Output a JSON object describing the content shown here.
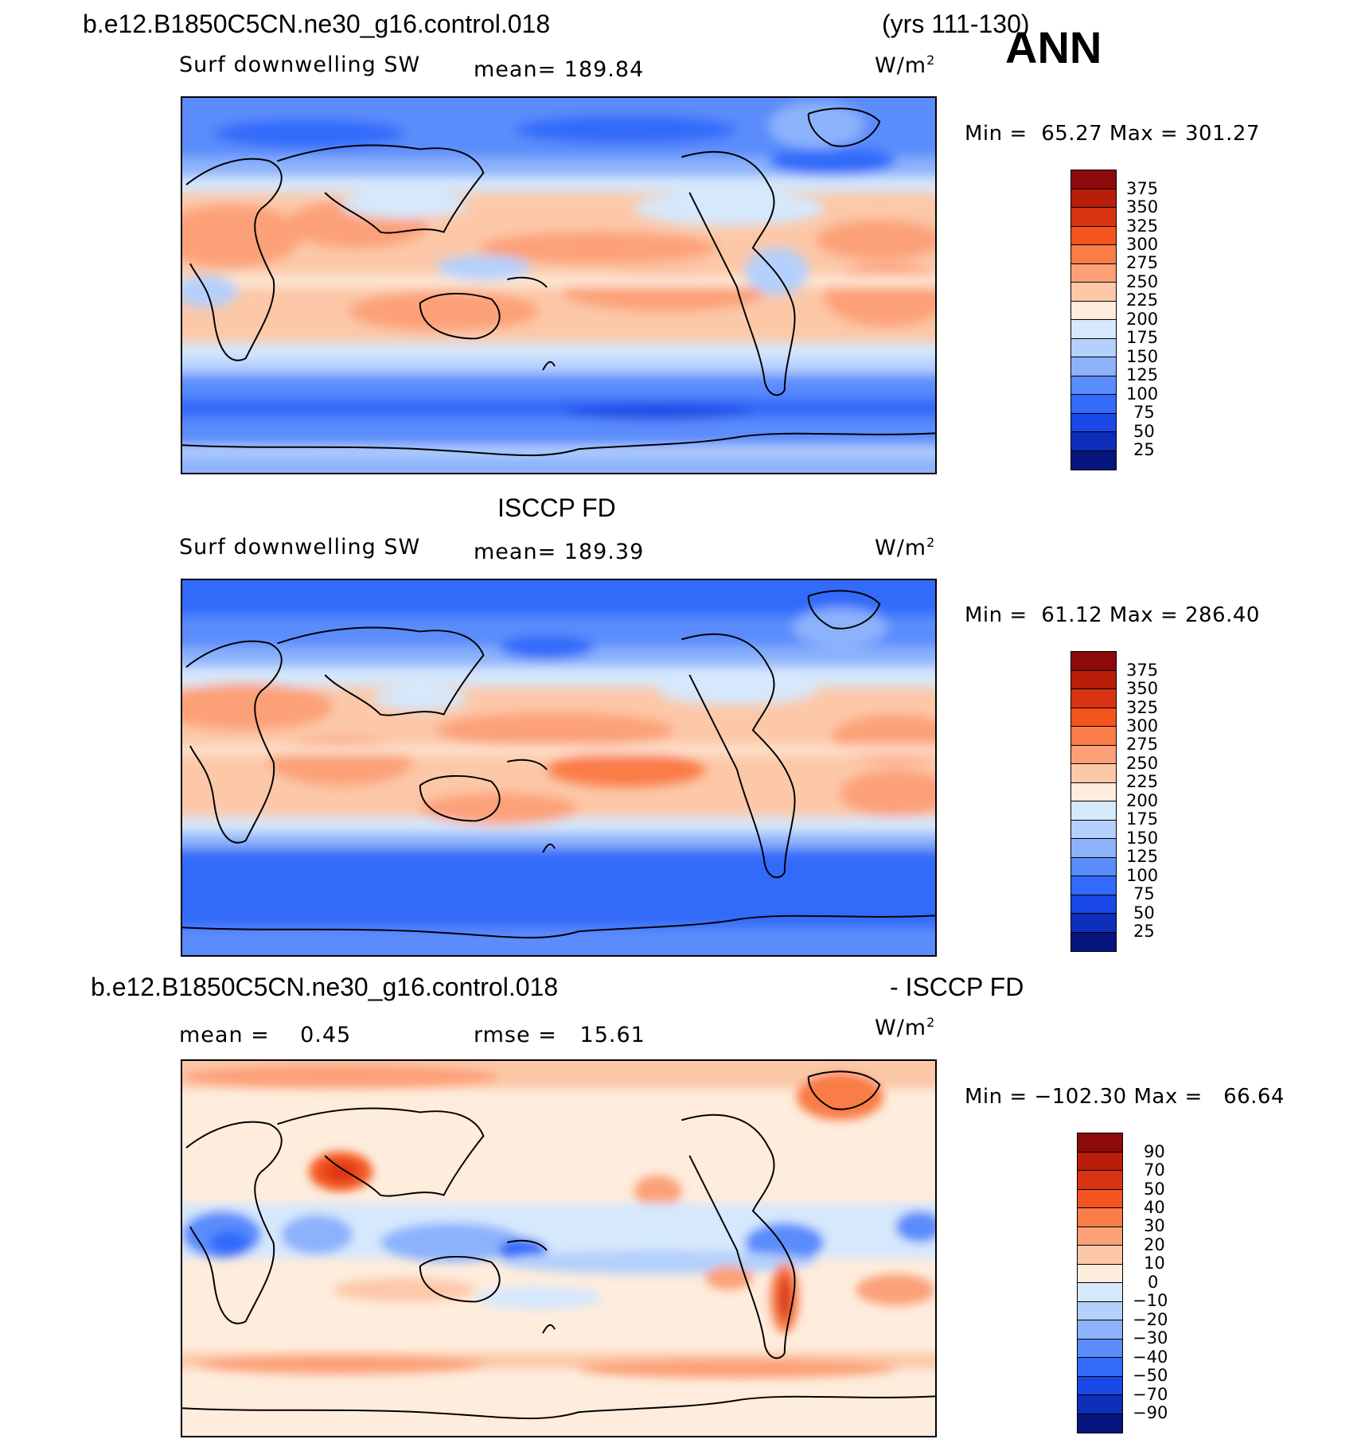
{
  "header": {
    "case": "b.e12.B1850C5CN.ne30_g16.control.018",
    "years": "(yrs 111-130)",
    "season": "ANN"
  },
  "panel1": {
    "variable": "Surf downwelling SW",
    "mean_text": "mean= 189.84",
    "units": "W/m",
    "units_sup": "2",
    "minmax_text": "Min =  65.27 Max = 301.27",
    "min": 65.27,
    "max": 301.27
  },
  "panel2": {
    "title": "ISCCP FD",
    "variable": "Surf downwelling SW",
    "mean_text": "mean= 189.39",
    "units": "W/m",
    "units_sup": "2",
    "minmax_text": "Min =  61.12 Max = 286.40",
    "min": 61.12,
    "max": 286.4
  },
  "panel3": {
    "title_left": "b.e12.B1850C5CN.ne30_g16.control.018",
    "title_right": "- ISCCP FD",
    "mean_text": "mean =    0.45",
    "rmse_text": "rmse =   15.61",
    "units": "W/m",
    "units_sup": "2",
    "minmax_text": "Min = −102.30 Max =   66.64",
    "min": -102.3,
    "max": 66.64
  },
  "colorbar_abs": {
    "labels": [
      "375",
      "350",
      "325",
      "300",
      "275",
      "250",
      "225",
      "200",
      "175",
      "150",
      "125",
      "100",
      "75",
      "50",
      "25"
    ],
    "colors": [
      "#8c0a0a",
      "#b81e0a",
      "#d83414",
      "#f4541e",
      "#fa7c46",
      "#fca078",
      "#fcc8a8",
      "#feecdc",
      "#d6e8fc",
      "#b4d0fc",
      "#8cb2fc",
      "#5a8cfc",
      "#326afa",
      "#1a48e6",
      "#0c2eb8",
      "#06147e"
    ]
  },
  "colorbar_diff": {
    "labels": [
      "90",
      "70",
      "50",
      "40",
      "30",
      "20",
      "10",
      "0",
      "−10",
      "−20",
      "−30",
      "−40",
      "−50",
      "−70",
      "−90"
    ],
    "colors": [
      "#8c0a0a",
      "#b81e0a",
      "#d83414",
      "#f4541e",
      "#fa7c46",
      "#fca078",
      "#fcc8a8",
      "#feecdc",
      "#d6e8fc",
      "#b4d0fc",
      "#8cb2fc",
      "#5a8cfc",
      "#326afa",
      "#1a48e6",
      "#0c2eb8",
      "#06147e"
    ]
  }
}
